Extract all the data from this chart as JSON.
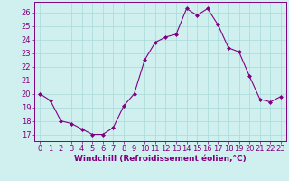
{
  "x": [
    0,
    1,
    2,
    3,
    4,
    5,
    6,
    7,
    8,
    9,
    10,
    11,
    12,
    13,
    14,
    15,
    16,
    17,
    18,
    19,
    20,
    21,
    22,
    23
  ],
  "y": [
    20.0,
    19.5,
    18.0,
    17.8,
    17.4,
    17.0,
    17.0,
    17.5,
    19.1,
    20.0,
    22.5,
    23.8,
    24.2,
    24.4,
    26.3,
    25.8,
    26.3,
    25.1,
    23.4,
    23.1,
    21.3,
    19.6,
    19.4,
    19.8
  ],
  "line_color": "#800080",
  "marker": "D",
  "marker_size": 2.0,
  "bg_color": "#d0f0f0",
  "grid_color": "#a8d8d8",
  "xlabel": "Windchill (Refroidissement éolien,°C)",
  "xlabel_color": "#800080",
  "xlabel_fontsize": 6.5,
  "tick_color": "#800080",
  "tick_fontsize": 6.0,
  "ylim": [
    16.5,
    26.8
  ],
  "yticks": [
    17,
    18,
    19,
    20,
    21,
    22,
    23,
    24,
    25,
    26
  ],
  "xlim": [
    -0.5,
    23.5
  ],
  "xticks": [
    0,
    1,
    2,
    3,
    4,
    5,
    6,
    7,
    8,
    9,
    10,
    11,
    12,
    13,
    14,
    15,
    16,
    17,
    18,
    19,
    20,
    21,
    22,
    23
  ]
}
